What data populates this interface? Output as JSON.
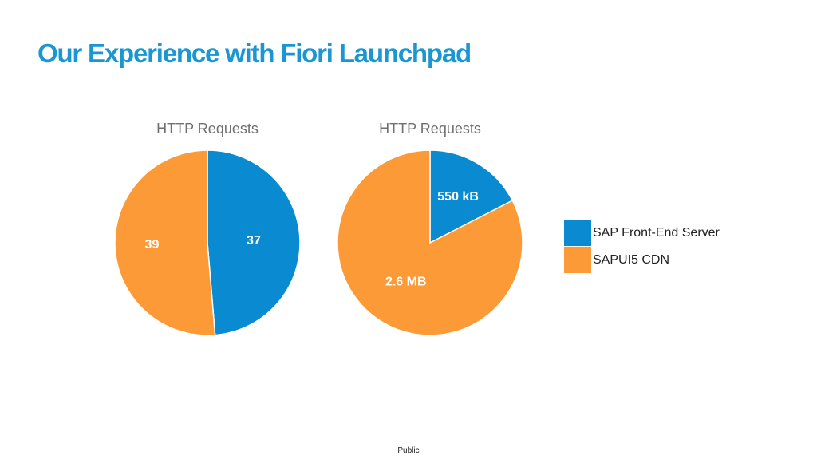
{
  "slide": {
    "title": "Our Experience with Fiori Launchpad",
    "footer": "Public"
  },
  "colors": {
    "title": "#1a96d2",
    "chart_title": "#707070",
    "sap_front_end_server": "#098ad1",
    "sapui5_cdn": "#fc9a38"
  },
  "legend": {
    "items": [
      {
        "label": "SAP Front-End Server",
        "color_key": "sap_front_end_server"
      },
      {
        "label": "SAPUI5 CDN",
        "color_key": "sapui5_cdn"
      }
    ],
    "placement": "right"
  },
  "chart_data": [
    {
      "type": "pie",
      "title": "HTTP Requests",
      "slices": [
        {
          "label": "SAP Front-End Server",
          "value": 37,
          "display": "37",
          "color_key": "sap_front_end_server"
        },
        {
          "label": "SAPUI5 CDN",
          "value": 39,
          "display": "39",
          "color_key": "sapui5_cdn"
        }
      ]
    },
    {
      "type": "pie",
      "title": "HTTP Requests",
      "slices": [
        {
          "label": "SAP Front-End Server",
          "value": 0.55,
          "display": "550 kB",
          "color_key": "sap_front_end_server"
        },
        {
          "label": "SAPUI5 CDN",
          "value": 2.6,
          "display": "2.6 MB",
          "color_key": "sapui5_cdn"
        }
      ]
    }
  ]
}
